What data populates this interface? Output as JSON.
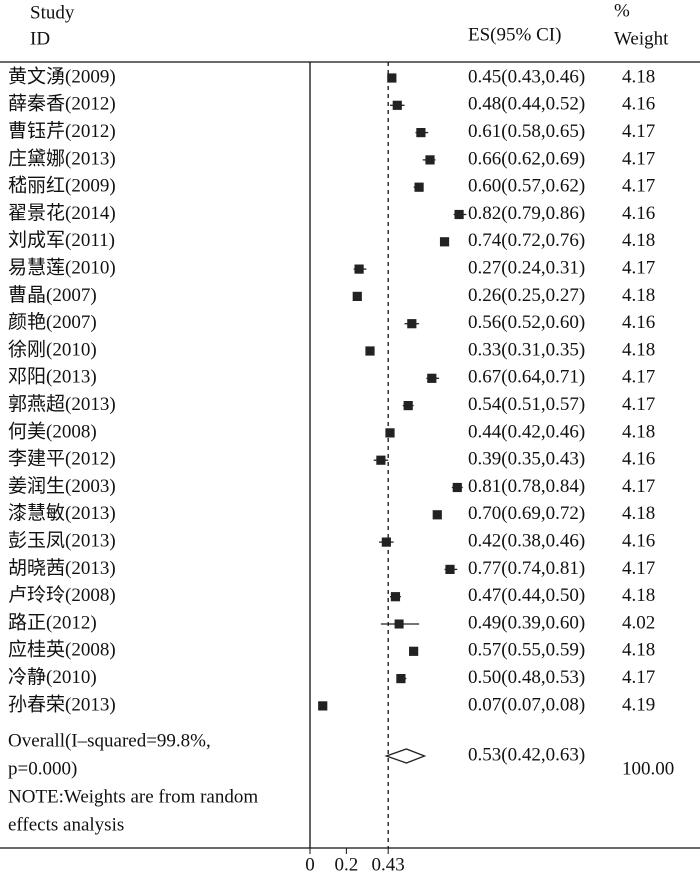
{
  "chart_data": {
    "type": "forest",
    "headers": {
      "study": "Study",
      "id": "ID",
      "es": "ES(95% CI)",
      "pct": "%",
      "weight": "Weight"
    },
    "studies": [
      {
        "name": "黄文湧(2009)",
        "es": 0.45,
        "ci_low": 0.43,
        "ci_high": 0.46,
        "es_label": "0.45(0.43,0.46)",
        "weight": 4.18
      },
      {
        "name": "薛秦香(2012)",
        "es": 0.48,
        "ci_low": 0.44,
        "ci_high": 0.52,
        "es_label": "0.48(0.44,0.52)",
        "weight": 4.16
      },
      {
        "name": "曹钰芹(2012)",
        "es": 0.61,
        "ci_low": 0.58,
        "ci_high": 0.65,
        "es_label": "0.61(0.58,0.65)",
        "weight": 4.17
      },
      {
        "name": "庄黛娜(2013)",
        "es": 0.66,
        "ci_low": 0.62,
        "ci_high": 0.69,
        "es_label": "0.66(0.62,0.69)",
        "weight": 4.17
      },
      {
        "name": "嵇丽红(2009)",
        "es": 0.6,
        "ci_low": 0.57,
        "ci_high": 0.62,
        "es_label": "0.60(0.57,0.62)",
        "weight": 4.17
      },
      {
        "name": "翟景花(2014)",
        "es": 0.82,
        "ci_low": 0.79,
        "ci_high": 0.86,
        "es_label": "0.82(0.79,0.86)",
        "weight": 4.16
      },
      {
        "name": "刘成军(2011)",
        "es": 0.74,
        "ci_low": 0.72,
        "ci_high": 0.76,
        "es_label": "0.74(0.72,0.76)",
        "weight": 4.18
      },
      {
        "name": "易慧莲(2010)",
        "es": 0.27,
        "ci_low": 0.24,
        "ci_high": 0.31,
        "es_label": "0.27(0.24,0.31)",
        "weight": 4.17
      },
      {
        "name": "曹晶(2007)",
        "es": 0.26,
        "ci_low": 0.25,
        "ci_high": 0.27,
        "es_label": "0.26(0.25,0.27)",
        "weight": 4.18
      },
      {
        "name": "颜艳(2007)",
        "es": 0.56,
        "ci_low": 0.52,
        "ci_high": 0.6,
        "es_label": "0.56(0.52,0.60)",
        "weight": 4.16
      },
      {
        "name": "徐刚(2010)",
        "es": 0.33,
        "ci_low": 0.31,
        "ci_high": 0.35,
        "es_label": "0.33(0.31,0.35)",
        "weight": 4.18
      },
      {
        "name": "邓阳(2013)",
        "es": 0.67,
        "ci_low": 0.64,
        "ci_high": 0.71,
        "es_label": "0.67(0.64,0.71)",
        "weight": 4.17
      },
      {
        "name": "郭燕超(2013)",
        "es": 0.54,
        "ci_low": 0.51,
        "ci_high": 0.57,
        "es_label": "0.54(0.51,0.57)",
        "weight": 4.17
      },
      {
        "name": "何美(2008)",
        "es": 0.44,
        "ci_low": 0.42,
        "ci_high": 0.46,
        "es_label": "0.44(0.42,0.46)",
        "weight": 4.18
      },
      {
        "name": "李建平(2012)",
        "es": 0.39,
        "ci_low": 0.35,
        "ci_high": 0.43,
        "es_label": "0.39(0.35,0.43)",
        "weight": 4.16
      },
      {
        "name": "姜润生(2003)",
        "es": 0.81,
        "ci_low": 0.78,
        "ci_high": 0.84,
        "es_label": "0.81(0.78,0.84)",
        "weight": 4.17
      },
      {
        "name": "漆慧敏(2013)",
        "es": 0.7,
        "ci_low": 0.69,
        "ci_high": 0.72,
        "es_label": "0.70(0.69,0.72)",
        "weight": 4.18
      },
      {
        "name": "彭玉凤(2013)",
        "es": 0.42,
        "ci_low": 0.38,
        "ci_high": 0.46,
        "es_label": "0.42(0.38,0.46)",
        "weight": 4.16
      },
      {
        "name": "胡晓茜(2013)",
        "es": 0.77,
        "ci_low": 0.74,
        "ci_high": 0.81,
        "es_label": "0.77(0.74,0.81)",
        "weight": 4.17
      },
      {
        "name": "卢玲玲(2008)",
        "es": 0.47,
        "ci_low": 0.44,
        "ci_high": 0.5,
        "es_label": "0.47(0.44,0.50)",
        "weight": 4.18
      },
      {
        "name": "路正(2012)",
        "es": 0.49,
        "ci_low": 0.39,
        "ci_high": 0.6,
        "es_label": "0.49(0.39,0.60)",
        "weight": 4.02
      },
      {
        "name": "应桂英(2008)",
        "es": 0.57,
        "ci_low": 0.55,
        "ci_high": 0.59,
        "es_label": "0.57(0.55,0.59)",
        "weight": 4.18
      },
      {
        "name": "冷静(2010)",
        "es": 0.5,
        "ci_low": 0.48,
        "ci_high": 0.53,
        "es_label": "0.50(0.48,0.53)",
        "weight": 4.17
      },
      {
        "name": "孙春荣(2013)",
        "es": 0.07,
        "ci_low": 0.07,
        "ci_high": 0.08,
        "es_label": "0.07(0.07,0.08)",
        "weight": 4.19
      }
    ],
    "overall": {
      "name_lines": [
        "Overall(I–squared=99.8%,",
        "p=0.000)"
      ],
      "es": 0.53,
      "ci_low": 0.42,
      "ci_high": 0.63,
      "es_label": "0.53(0.42,0.63)",
      "weight": {
        "value": 100,
        "label": "100.00"
      }
    },
    "note_lines": [
      "NOTE:Weights are from random",
      "effects analysis"
    ],
    "xlim": [
      0,
      0.88
    ],
    "xticks": [
      0,
      0.2,
      0.43
    ],
    "ref_line": 0.43,
    "color": "#222222"
  }
}
